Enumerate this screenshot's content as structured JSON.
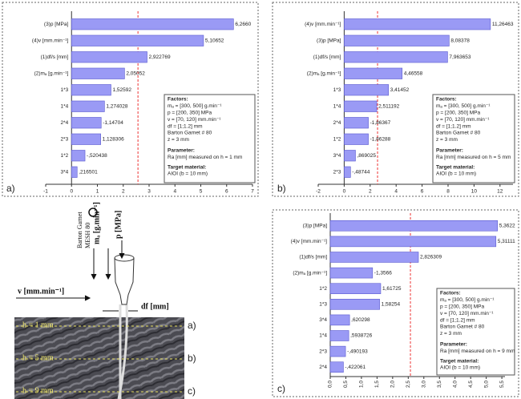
{
  "chart_data": [
    {
      "type": "pareto",
      "panel_label": "a)",
      "categories": [
        "(3)p [MPa]",
        "(4)v [mm.min⁻¹]",
        "(1)df/s [mm]",
        "(2)mₐ [g.min⁻¹]",
        "1*3",
        "1*4",
        "2*4",
        "2*3",
        "1*2",
        "3*4"
      ],
      "values": [
        6.266,
        5.10652,
        2.922769,
        2.05052,
        1.52592,
        1.274028,
        -1.14704,
        1.128306,
        -0.520438,
        0.216501
      ],
      "value_labels": [
        "6,2660",
        "5,10652",
        "2,922769",
        "2,05052",
        "1,52592",
        "1,274028",
        "-1,14704",
        "1,128306",
        "-,520438",
        ",216501"
      ],
      "color": "#9a9af5",
      "threshold": 2.57,
      "xlim": [
        -1,
        7
      ],
      "xticks": [
        -1,
        0,
        1,
        2,
        3,
        4,
        5,
        6,
        7
      ],
      "notes": [
        "Factors:",
        "mₐ = [300, 500] g.min⁻¹",
        "p = [200, 350] MPa",
        "v = [70, 120] mm.min⁻¹",
        "df = [1;1.2] mm",
        "Barton Garnet # 80",
        "z = 3 mm",
        "Parameter:",
        "Ra [mm] measured on h = 1 mm",
        "Target material:",
        "AIOI (b = 10 mm)"
      ]
    },
    {
      "type": "pareto",
      "panel_label": "b)",
      "categories": [
        "(4)v [mm.min⁻¹]",
        "(3)p [MPa]",
        "(1)df/s [mm]",
        "(2)mₐ [g.min⁻¹]",
        "1*3",
        "1*4",
        "2*4",
        "1*2",
        "3*4",
        "2*3"
      ],
      "values": [
        11.26463,
        8.08378,
        7.963653,
        4.46558,
        3.41452,
        2.511192,
        -1.86367,
        -1.86288,
        0.869025,
        -0.48744
      ],
      "value_labels": [
        "11,26463",
        "8,08378",
        "7,963653",
        "4,46558",
        "3,41452",
        "2,511192",
        "-1,86367",
        "-1,86288",
        ",869025",
        "-,48744"
      ],
      "color": "#9a9af5",
      "threshold": 2.57,
      "xlim": [
        -2,
        13
      ],
      "xticks": [
        -2,
        0,
        2,
        4,
        6,
        8,
        10,
        12
      ],
      "notes": [
        "Factors:",
        "mₐ = [300, 500] g.min⁻¹",
        "p = [200, 350] MPa",
        "v = [70, 120] mm.min⁻¹",
        "df = [1;1.2] mm",
        "Barton Garnet # 80",
        "z = 3 mm",
        "Parameter:",
        "Ra [mm] measured on h = 5 mm",
        "Target material:",
        "AIOI (b = 10 mm)"
      ]
    },
    {
      "type": "pareto",
      "panel_label": "c)",
      "categories": [
        "(3)p [MPa]",
        "(4)v [mm.min⁻¹]",
        "(1)df/s [mm]",
        "(2)mₐ [g.min⁻¹]",
        "1*2",
        "1*3",
        "3*4",
        "1*4",
        "2*3",
        "2*4"
      ],
      "values": [
        5.3622,
        5.31111,
        2.826309,
        -1.3566,
        1.61725,
        1.58254,
        0.620298,
        0.5938726,
        -0.490193,
        -0.422061
      ],
      "value_labels": [
        "5,3622",
        "5,31111",
        "2,826309",
        "-1,3566",
        "1,61725",
        "1,58254",
        ",620298",
        ",5938726",
        "-,490193",
        "-,422061"
      ],
      "color": "#9a9af5",
      "threshold": 2.57,
      "xlim": [
        0,
        5.6
      ],
      "xticks": [
        {
          "value": 0,
          "label": "0,0"
        },
        {
          "value": 0.5,
          "label": "0,5"
        },
        {
          "value": 1,
          "label": "1,0"
        },
        {
          "value": 1.5,
          "label": "1,5"
        },
        {
          "value": 2,
          "label": "2,0"
        },
        {
          "value": 2.5,
          "label": "2,5"
        },
        {
          "value": 3,
          "label": "3,0"
        },
        {
          "value": 3.5,
          "label": "3,5"
        },
        {
          "value": 4,
          "label": "4,0"
        },
        {
          "value": 4.5,
          "label": "4,5"
        },
        {
          "value": 5,
          "label": "5,0"
        },
        {
          "value": 5.5,
          "label": "5,5"
        }
      ],
      "notes": [
        "Factors:",
        "mₐ = [300, 500] g.min⁻¹",
        "p = [200, 350] MPa",
        "v = [70, 120] mm.min⁻¹",
        "df = [1;1.2] mm",
        "Barton Garnet # 80",
        "z = 3 mm",
        "Parameter:",
        "Ra [mm] measured on h = 9 mm",
        "Target material:",
        "AIOI (b = 10 mm)"
      ]
    }
  ],
  "diagram": {
    "abrasive": [
      "Barton Garnet",
      "MESH 80"
    ],
    "flow": "mₐ [g.min⁻¹]",
    "pressure": "p [MPa]",
    "speed": "v [mm.min⁻¹]",
    "diameter": "df [mm]",
    "depths": [
      "h = 1 mm",
      "h = 5 mm",
      "h = 9 mm"
    ],
    "depth_labels": [
      "a)",
      "b)",
      "c)"
    ]
  }
}
